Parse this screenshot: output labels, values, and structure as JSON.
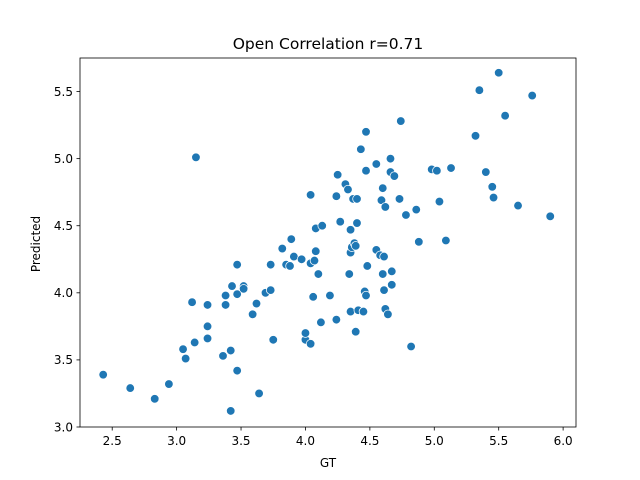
{
  "chart_data": {
    "type": "scatter",
    "title": "Open Correlation r=0.71",
    "xlabel": "GT",
    "ylabel": "Predicted",
    "xlim": [
      2.25,
      6.1
    ],
    "ylim": [
      3.0,
      5.75
    ],
    "x_ticks": [
      "2.5",
      "3.0",
      "3.5",
      "4.0",
      "4.5",
      "5.0",
      "5.5",
      "6.0"
    ],
    "y_ticks": [
      "3.0",
      "3.5",
      "4.0",
      "4.5",
      "5.0",
      "5.5"
    ],
    "grid": false,
    "marker_color": "#1f77b4",
    "marker_edge_color": "#ffffff",
    "points": [
      [
        2.43,
        3.39
      ],
      [
        2.64,
        3.29
      ],
      [
        2.83,
        3.21
      ],
      [
        2.94,
        3.32
      ],
      [
        3.05,
        3.58
      ],
      [
        3.07,
        3.51
      ],
      [
        3.12,
        3.93
      ],
      [
        3.14,
        3.63
      ],
      [
        3.15,
        5.01
      ],
      [
        3.24,
        3.91
      ],
      [
        3.24,
        3.75
      ],
      [
        3.24,
        3.66
      ],
      [
        3.36,
        3.53
      ],
      [
        3.38,
        3.91
      ],
      [
        3.38,
        3.98
      ],
      [
        3.42,
        3.57
      ],
      [
        3.43,
        4.05
      ],
      [
        3.42,
        3.12
      ],
      [
        3.47,
        4.21
      ],
      [
        3.47,
        3.42
      ],
      [
        3.47,
        3.99
      ],
      [
        3.52,
        4.05
      ],
      [
        3.52,
        4.03
      ],
      [
        3.59,
        3.84
      ],
      [
        3.62,
        3.92
      ],
      [
        3.64,
        3.25
      ],
      [
        3.69,
        4.0
      ],
      [
        3.73,
        4.21
      ],
      [
        3.73,
        4.02
      ],
      [
        3.75,
        3.65
      ],
      [
        3.82,
        4.33
      ],
      [
        3.85,
        4.21
      ],
      [
        3.88,
        4.2
      ],
      [
        3.89,
        4.4
      ],
      [
        3.91,
        4.27
      ],
      [
        3.97,
        4.25
      ],
      [
        4.0,
        3.65
      ],
      [
        4.0,
        3.7
      ],
      [
        4.04,
        4.22
      ],
      [
        4.04,
        3.62
      ],
      [
        4.04,
        4.73
      ],
      [
        4.07,
        4.24
      ],
      [
        4.06,
        3.97
      ],
      [
        4.08,
        4.31
      ],
      [
        4.08,
        4.48
      ],
      [
        4.1,
        4.14
      ],
      [
        4.12,
        3.78
      ],
      [
        4.13,
        4.5
      ],
      [
        4.19,
        3.98
      ],
      [
        4.24,
        3.8
      ],
      [
        4.24,
        4.72
      ],
      [
        4.25,
        4.88
      ],
      [
        4.27,
        4.53
      ],
      [
        4.31,
        4.81
      ],
      [
        4.33,
        4.77
      ],
      [
        4.34,
        4.14
      ],
      [
        4.35,
        4.47
      ],
      [
        4.35,
        4.3
      ],
      [
        4.35,
        3.86
      ],
      [
        4.37,
        4.7
      ],
      [
        4.36,
        4.34
      ],
      [
        4.38,
        4.37
      ],
      [
        4.39,
        4.35
      ],
      [
        4.39,
        3.71
      ],
      [
        4.4,
        4.52
      ],
      [
        4.4,
        4.7
      ],
      [
        4.41,
        3.87
      ],
      [
        4.43,
        5.07
      ],
      [
        4.45,
        3.86
      ],
      [
        4.46,
        4.01
      ],
      [
        4.47,
        4.91
      ],
      [
        4.47,
        3.98
      ],
      [
        4.47,
        5.2
      ],
      [
        4.48,
        4.2
      ],
      [
        4.55,
        4.96
      ],
      [
        4.55,
        4.32
      ],
      [
        4.58,
        4.28
      ],
      [
        4.59,
        4.69
      ],
      [
        4.6,
        4.78
      ],
      [
        4.6,
        4.14
      ],
      [
        4.61,
        4.27
      ],
      [
        4.61,
        4.02
      ],
      [
        4.62,
        4.64
      ],
      [
        4.62,
        3.88
      ],
      [
        4.64,
        3.84
      ],
      [
        4.66,
        5.0
      ],
      [
        4.66,
        4.9
      ],
      [
        4.67,
        4.16
      ],
      [
        4.67,
        4.06
      ],
      [
        4.69,
        4.87
      ],
      [
        4.73,
        4.7
      ],
      [
        4.74,
        5.28
      ],
      [
        4.78,
        4.58
      ],
      [
        4.82,
        3.6
      ],
      [
        4.86,
        4.62
      ],
      [
        4.88,
        4.38
      ],
      [
        4.98,
        4.92
      ],
      [
        5.02,
        4.91
      ],
      [
        5.04,
        4.68
      ],
      [
        5.09,
        4.39
      ],
      [
        5.13,
        4.93
      ],
      [
        5.32,
        5.17
      ],
      [
        5.35,
        5.51
      ],
      [
        5.4,
        4.9
      ],
      [
        5.45,
        4.79
      ],
      [
        5.46,
        4.71
      ],
      [
        5.5,
        5.64
      ],
      [
        5.55,
        5.32
      ],
      [
        5.65,
        4.65
      ],
      [
        5.76,
        5.47
      ],
      [
        5.9,
        4.57
      ]
    ]
  }
}
